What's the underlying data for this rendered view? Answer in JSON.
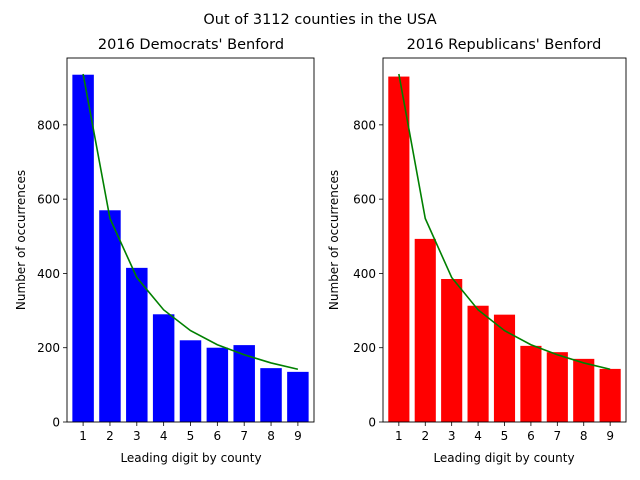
{
  "suptitle": "Out of 3112 counties in the USA",
  "chart_data": [
    {
      "type": "bar",
      "title": "2016 Democrats' Benford",
      "xlabel": "Leading digit by county",
      "ylabel": "Number of occurrences",
      "categories": [
        "1",
        "2",
        "3",
        "4",
        "5",
        "6",
        "7",
        "8",
        "9"
      ],
      "series": [
        {
          "values": [
            935,
            570,
            415,
            290,
            220,
            200,
            207,
            145,
            135
          ],
          "color": "#0000ff"
        }
      ],
      "overlay_line": {
        "values": [
          937,
          548,
          389,
          302,
          246,
          208,
          181,
          159,
          142
        ],
        "color": "#008000"
      },
      "yticks": [
        0,
        200,
        400,
        600,
        800
      ],
      "ylim": [
        0,
        980
      ],
      "grid": false
    },
    {
      "type": "bar",
      "title": "2016 Republicans' Benford",
      "xlabel": "Leading digit by county",
      "ylabel": "Number of occurrences",
      "categories": [
        "1",
        "2",
        "3",
        "4",
        "5",
        "6",
        "7",
        "8",
        "9"
      ],
      "series": [
        {
          "values": [
            930,
            493,
            385,
            313,
            289,
            205,
            188,
            170,
            143
          ],
          "color": "#ff0000"
        }
      ],
      "overlay_line": {
        "values": [
          937,
          548,
          389,
          302,
          246,
          208,
          181,
          159,
          142
        ],
        "color": "#008000"
      },
      "yticks": [
        0,
        200,
        400,
        600,
        800
      ],
      "ylim": [
        0,
        980
      ],
      "grid": false
    }
  ]
}
